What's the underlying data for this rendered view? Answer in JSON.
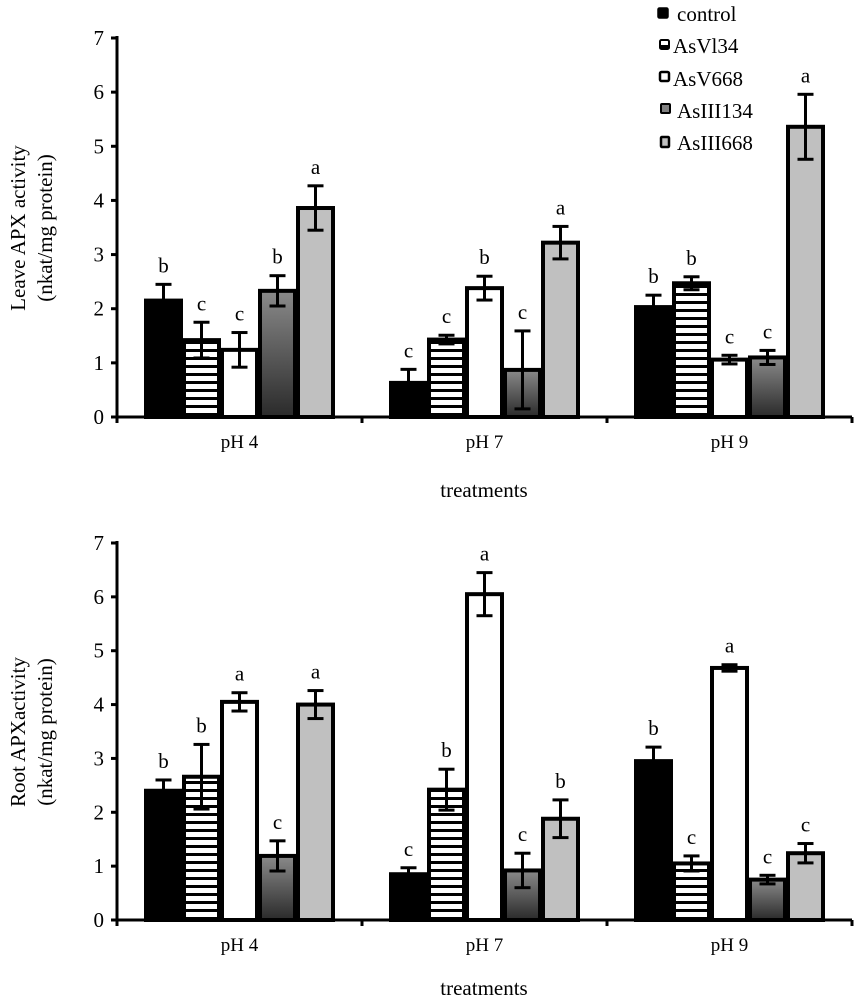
{
  "legend": {
    "placement": "top-right",
    "items": [
      {
        "name": "control",
        "label": "control"
      },
      {
        "name": "AsVI34",
        "label": "AsVl34"
      },
      {
        "name": "AsV668",
        "label": "AsV668"
      },
      {
        "name": "AsIII134",
        "label": "AsIII134"
      },
      {
        "name": "AsIII668",
        "label": "AsIII668"
      }
    ]
  },
  "series_styles": {
    "control": {
      "fill": "#000000",
      "pattern": "solid"
    },
    "AsVI34": {
      "fill": "#ffffff",
      "pattern": "horizontal-stripes"
    },
    "AsV668": {
      "fill": "#ffffff",
      "pattern": "solid"
    },
    "AsIII134": {
      "fill": "#6e6e6e",
      "pattern": "gradient-dark"
    },
    "AsIII668": {
      "fill": "#c0c0c0",
      "pattern": "solid"
    }
  },
  "chart_data": [
    {
      "type": "bar",
      "title": "",
      "xlabel": "treatments",
      "ylabel": "Leave APX activity",
      "ylabel2": "(nkat/mg protein)",
      "ylim": [
        0,
        7
      ],
      "yticks": [
        "0",
        "1",
        "2",
        "3",
        "4",
        "5",
        "6",
        "7"
      ],
      "grid": false,
      "categories": [
        "pH 4",
        "pH 7",
        "pH 9"
      ],
      "series": [
        {
          "name": "control",
          "values": [
            2.15,
            0.63,
            2.03
          ],
          "errors": [
            0.3,
            0.25,
            0.22
          ],
          "letters": [
            "b",
            "c",
            "b"
          ]
        },
        {
          "name": "AsVl34",
          "values": [
            1.42,
            1.43,
            2.47
          ],
          "errors": [
            0.33,
            0.08,
            0.12
          ],
          "letters": [
            "c",
            "c",
            "b"
          ]
        },
        {
          "name": "AsV668",
          "values": [
            1.24,
            2.38,
            1.06
          ],
          "errors": [
            0.32,
            0.22,
            0.08
          ],
          "letters": [
            "c",
            "b",
            "c"
          ]
        },
        {
          "name": "AsIII134",
          "values": [
            2.33,
            0.87,
            1.1
          ],
          "errors": [
            0.28,
            0.72,
            0.13
          ],
          "letters": [
            "b",
            "c",
            "c"
          ]
        },
        {
          "name": "AsIII668",
          "values": [
            3.86,
            3.22,
            5.36
          ],
          "errors": [
            0.41,
            0.3,
            0.6
          ],
          "letters": [
            "a",
            "a",
            "a"
          ]
        }
      ]
    },
    {
      "type": "bar",
      "title": "",
      "xlabel": "treatments",
      "ylabel": "Root APXactivity",
      "ylabel2": "(nkat/mg protein)",
      "ylim": [
        0,
        7
      ],
      "yticks": [
        "0",
        "1",
        "2",
        "3",
        "4",
        "5",
        "6",
        "7"
      ],
      "grid": false,
      "categories": [
        "pH 4",
        "pH 7",
        "pH 9"
      ],
      "series": [
        {
          "name": "control",
          "values": [
            2.4,
            0.85,
            2.95
          ],
          "errors": [
            0.2,
            0.12,
            0.26
          ],
          "letters": [
            "b",
            "c",
            "b"
          ]
        },
        {
          "name": "AsVl34",
          "values": [
            2.66,
            2.42,
            1.05
          ],
          "errors": [
            0.6,
            0.38,
            0.14
          ],
          "letters": [
            "b",
            "b",
            "c"
          ]
        },
        {
          "name": "AsV668",
          "values": [
            4.05,
            6.05,
            4.68
          ],
          "errors": [
            0.17,
            0.4,
            0.06
          ],
          "letters": [
            "a",
            "a",
            "a"
          ]
        },
        {
          "name": "AsIII134",
          "values": [
            1.19,
            0.92,
            0.75
          ],
          "errors": [
            0.28,
            0.32,
            0.08
          ],
          "letters": [
            "c",
            "c",
            "c"
          ]
        },
        {
          "name": "AsIII668",
          "values": [
            4.0,
            1.88,
            1.24
          ],
          "errors": [
            0.26,
            0.35,
            0.18
          ],
          "letters": [
            "a",
            "b",
            "c"
          ]
        }
      ]
    }
  ]
}
